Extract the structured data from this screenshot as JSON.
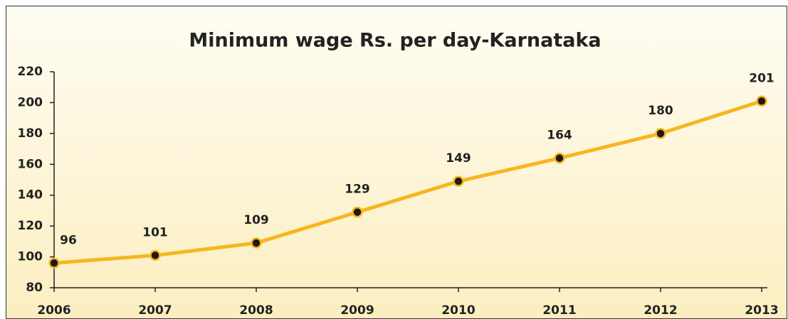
{
  "chart_data": {
    "type": "line",
    "title": "Minimum wage Rs. per day-Karnataka",
    "categories": [
      "2006",
      "2007",
      "2008",
      "2009",
      "2010",
      "2011",
      "2012",
      "2013"
    ],
    "values": [
      96,
      101,
      109,
      129,
      149,
      164,
      180,
      201
    ],
    "color": "#f7b620",
    "marker_color": "#1a1a1a",
    "ylim": [
      80,
      220
    ],
    "yticks": [
      80,
      100,
      120,
      140,
      160,
      180,
      200,
      220
    ],
    "grid": false
  }
}
